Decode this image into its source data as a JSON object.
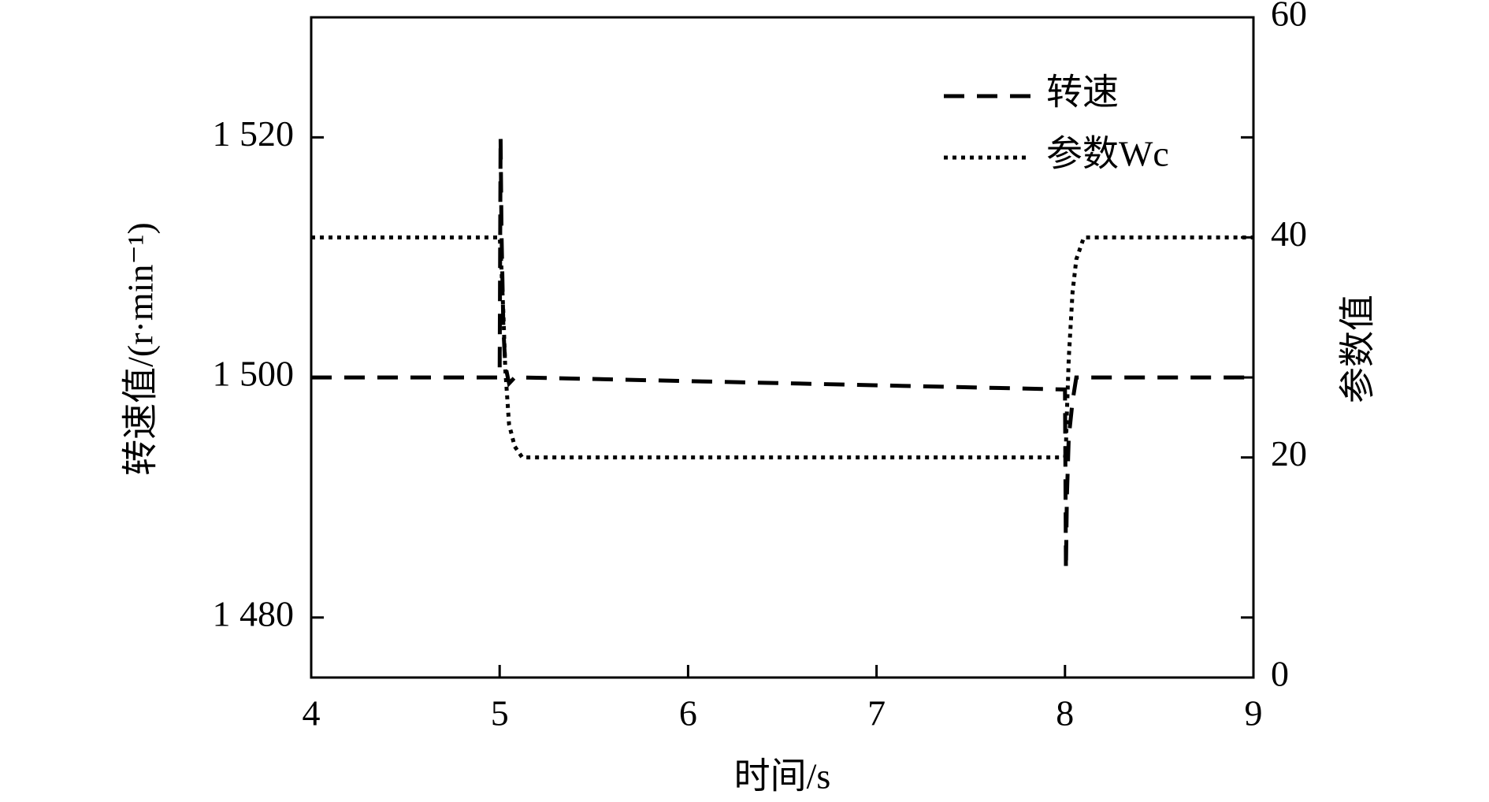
{
  "chart_data": {
    "type": "line",
    "x_label": "时间/s",
    "y_label": "转速值/(r·min⁻¹)",
    "y2_label": "参数值",
    "x": [
      4,
      5,
      5.005,
      5.01,
      5.02,
      5.03,
      5.05,
      5.08,
      5.12,
      8,
      8.005,
      8.01,
      8.02,
      8.04,
      8.06,
      8.1,
      9
    ],
    "series": [
      {
        "name": "转速",
        "color": "#000000",
        "dash": "dashed",
        "values": [
          1500,
          1500,
          1520,
          1512,
          1504,
          1501,
          1499.5,
          1500,
          1500,
          1499,
          1484,
          1490,
          1495,
          1498,
          1500,
          1500,
          1500
        ]
      },
      {
        "name": "参数Wc",
        "color": "#000000",
        "dash": "dotted",
        "axis": "y2",
        "values": [
          40,
          40,
          39,
          37,
          33,
          28,
          23,
          21,
          20,
          20,
          21,
          24,
          29,
          35,
          38,
          40,
          40
        ]
      }
    ],
    "xlim": [
      4,
      9
    ],
    "xticks": [
      4,
      5,
      6,
      7,
      8,
      9
    ],
    "ylim": [
      1475,
      1530
    ],
    "yticks": [
      {
        "value": 1480,
        "label": "1 480"
      },
      {
        "value": 1500,
        "label": "1 500"
      },
      {
        "value": 1520,
        "label": "1 520"
      }
    ],
    "y2lim": [
      0,
      60
    ],
    "y2ticks": [
      0,
      20,
      40,
      60
    ],
    "legend": "upper right",
    "grid": false
  }
}
